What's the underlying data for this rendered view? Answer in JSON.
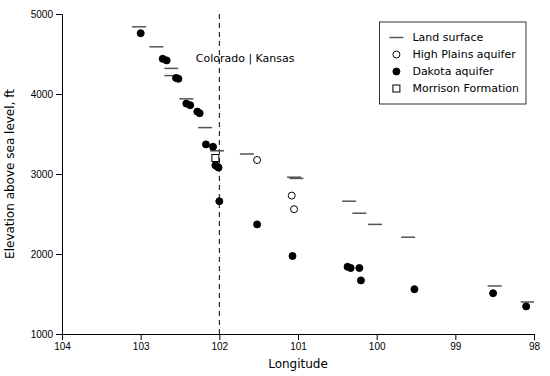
{
  "chart_data": {
    "type": "scatter",
    "xlabel": "Longitude",
    "ylabel": "Elevation above sea level, ft",
    "xlim": [
      104,
      98
    ],
    "ylim": [
      1000,
      5000
    ],
    "xticks": [
      104,
      103,
      102,
      101,
      100,
      99,
      98
    ],
    "yticks": [
      1000,
      2000,
      3000,
      4000,
      5000
    ],
    "legend": "upper right",
    "series": [
      {
        "name": "Land surface",
        "marker": "dash",
        "color": "#555555",
        "x": [
          103.02,
          102.8,
          102.61,
          102.61,
          102.42,
          102.18,
          102.03,
          101.65,
          101.05,
          101.02,
          100.35,
          100.22,
          100.02,
          99.6,
          98.5,
          98.08
        ],
        "values": [
          4840,
          4590,
          4320,
          4230,
          3940,
          3580,
          3290,
          3250,
          2960,
          2945,
          2660,
          2510,
          2370,
          2210,
          1600,
          1400
        ]
      },
      {
        "name": "High Plains aquifer",
        "marker": "circle-open",
        "color": "#000000",
        "x": [
          101.52,
          101.08,
          101.05
        ],
        "values": [
          3175,
          2730,
          2560
        ]
      },
      {
        "name": "Dakota aquifer",
        "marker": "circle",
        "color": "#000000",
        "x": [
          103.0,
          102.72,
          102.67,
          102.55,
          102.52,
          102.42,
          102.37,
          102.28,
          102.25,
          102.17,
          102.08,
          102.05,
          102.03,
          102.01,
          102.0,
          101.52,
          101.07,
          100.37,
          100.33,
          100.22,
          100.2,
          99.52,
          98.52,
          98.1
        ],
        "values": [
          4760,
          4440,
          4420,
          4200,
          4190,
          3880,
          3860,
          3780,
          3760,
          3370,
          3340,
          3110,
          3095,
          3080,
          2660,
          2370,
          1975,
          1840,
          1825,
          1825,
          1670,
          1560,
          1510,
          1345
        ]
      },
      {
        "name": "Morrison Formation",
        "marker": "square-open",
        "color": "#000000",
        "x": [
          102.05
        ],
        "values": [
          3200
        ]
      }
    ],
    "reference_lines": [
      {
        "x": 102,
        "line_style": "dashed",
        "color": "#000000"
      }
    ],
    "annotations": [
      {
        "text": "Colorado | Kansas",
        "x": 102.3,
        "y": 4450
      }
    ]
  }
}
